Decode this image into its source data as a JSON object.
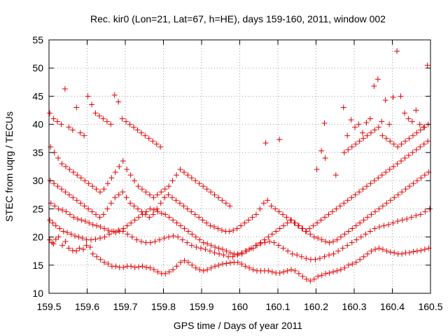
{
  "chart_data": {
    "type": "scatter",
    "title": "Rec. kir0 (Lon=21, Lat=67, h=HE), days 159-160, 2011, window 002",
    "xlabel": "GPS time / Days of year 2011",
    "ylabel": "STEC from uqrg / TECUs",
    "xlim": [
      159.5,
      160.5
    ],
    "ylim": [
      10,
      55
    ],
    "xticks": [
      159.5,
      159.6,
      159.7,
      159.8,
      159.9,
      160,
      160.1,
      160.2,
      160.3,
      160.4,
      160.5
    ],
    "xtick_labels": [
      "159.5",
      "159.6",
      "159.7",
      "159.8",
      "159.9",
      "160",
      "160.1",
      "160.2",
      "160.3",
      "160.4",
      "160.5"
    ],
    "yticks": [
      10,
      15,
      20,
      25,
      30,
      35,
      40,
      45,
      50,
      55
    ],
    "ytick_labels": [
      "10",
      "15",
      "20",
      "25",
      "30",
      "35",
      "40",
      "45",
      "50",
      "55"
    ],
    "grid": true,
    "marker": "+",
    "color": "#e00000",
    "series": [
      {
        "x": [
          159.502,
          159.508,
          159.512,
          159.518,
          159.525,
          159.535,
          159.543,
          159.552,
          159.562,
          159.572,
          159.58,
          159.59,
          159.598,
          159.608,
          159.615,
          159.625,
          159.635,
          159.645,
          159.655,
          159.665,
          159.675,
          159.685,
          159.695,
          159.705,
          159.715,
          159.725,
          159.735,
          159.745,
          159.755,
          159.765,
          159.775,
          159.785,
          159.795,
          159.805,
          159.815,
          159.825,
          159.835,
          159.845,
          159.855,
          159.865,
          159.875,
          159.885,
          159.895,
          159.905,
          159.915,
          159.925,
          159.935,
          159.945,
          159.955,
          159.965,
          159.975,
          159.985,
          159.995,
          160.005,
          160.015,
          160.025,
          160.035,
          160.045,
          160.055,
          160.065,
          160.075,
          160.085,
          160.095,
          160.105,
          160.115,
          160.125,
          160.135,
          160.145,
          160.155,
          160.165,
          160.175,
          160.185,
          160.195,
          160.205,
          160.215,
          160.225,
          160.235,
          160.245,
          160.255,
          160.265,
          160.275,
          160.285,
          160.295,
          160.305,
          160.315,
          160.325,
          160.335,
          160.345,
          160.355,
          160.365,
          160.375,
          160.385,
          160.395,
          160.405,
          160.415,
          160.425,
          160.435,
          160.445,
          160.455,
          160.465,
          160.475,
          160.485,
          160.495
        ],
        "y": [
          19.5,
          19.0,
          18.8,
          19.6,
          20.0,
          18.5,
          19.2,
          18.0,
          17.6,
          17.5,
          18.0,
          17.8,
          18.5,
          18.2,
          17.0,
          16.5,
          16.0,
          15.5,
          15.2,
          14.8,
          14.8,
          14.6,
          14.6,
          14.8,
          14.8,
          14.6,
          14.7,
          14.8,
          14.6,
          14.5,
          14.2,
          13.8,
          13.5,
          13.5,
          13.8,
          14.2,
          14.8,
          15.5,
          15.8,
          15.5,
          15.0,
          14.5,
          14.2,
          14.0,
          14.2,
          14.5,
          14.8,
          15.0,
          15.2,
          15.3,
          15.4,
          15.5,
          15.5,
          15.2,
          14.8,
          14.5,
          14.2,
          14.0,
          14.0,
          14.0,
          14.0,
          13.8,
          13.6,
          13.6,
          13.8,
          14.0,
          14.2,
          14.0,
          13.5,
          13.0,
          12.5,
          12.2,
          12.5,
          13.0,
          13.2,
          13.5,
          13.6,
          13.8,
          14.0,
          14.2,
          14.5,
          15.0,
          15.2,
          15.5,
          16.0,
          16.5,
          17.0,
          17.5,
          17.8,
          18.0,
          17.8,
          17.5,
          17.3,
          17.2,
          17.0,
          17.0,
          17.2,
          17.2,
          17.4,
          17.5,
          17.6,
          17.8,
          18.0
        ]
      },
      {
        "x": [
          159.502,
          159.51,
          159.518,
          159.528,
          159.538,
          159.548,
          159.558,
          159.568,
          159.578,
          159.588,
          159.598,
          159.61,
          159.622,
          159.634,
          159.646,
          159.658,
          159.67,
          159.682,
          159.694,
          159.706,
          159.718,
          159.73,
          159.742,
          159.754,
          159.766,
          159.778,
          159.79,
          159.802,
          159.814,
          159.826,
          159.838,
          159.85,
          159.862,
          159.874,
          159.886,
          159.898,
          159.91,
          159.922,
          159.934,
          159.946,
          159.958,
          159.97,
          159.982,
          159.994,
          160.006,
          160.018,
          160.03,
          160.042,
          160.054,
          160.066,
          160.078,
          160.09,
          160.102,
          160.114,
          160.126,
          160.138,
          160.15,
          160.162,
          160.174,
          160.186,
          160.198,
          160.21,
          160.222,
          160.234,
          160.246,
          160.258,
          160.27,
          160.282,
          160.294,
          160.306,
          160.318,
          160.33,
          160.342,
          160.354,
          160.366,
          160.378,
          160.39,
          160.402,
          160.414,
          160.426,
          160.438,
          160.45,
          160.462,
          160.474,
          160.486,
          160.498
        ],
        "y": [
          23.0,
          22.5,
          22.0,
          21.5,
          21.0,
          20.8,
          20.5,
          20.2,
          20.0,
          19.8,
          19.5,
          19.5,
          19.6,
          19.8,
          20.0,
          20.5,
          21.0,
          21.2,
          21.0,
          20.5,
          20.0,
          19.5,
          19.2,
          19.0,
          19.0,
          19.2,
          19.5,
          19.8,
          20.0,
          20.2,
          20.0,
          19.5,
          19.0,
          18.5,
          18.2,
          18.0,
          17.8,
          17.5,
          17.2,
          17.0,
          16.8,
          16.5,
          16.5,
          16.8,
          17.0,
          17.5,
          18.0,
          18.5,
          18.8,
          19.0,
          19.2,
          19.0,
          18.5,
          18.0,
          17.5,
          17.0,
          16.8,
          16.5,
          16.2,
          16.0,
          16.0,
          16.2,
          16.5,
          16.8,
          17.0,
          17.5,
          18.0,
          18.5,
          19.0,
          19.5,
          20.0,
          20.5,
          21.0,
          21.5,
          21.8,
          22.0,
          22.2,
          22.5,
          22.8,
          23.0,
          23.2,
          23.5,
          23.8,
          24.0,
          24.5,
          25.0
        ]
      },
      {
        "x": [
          159.505,
          159.515,
          159.525,
          159.535,
          159.545,
          159.555,
          159.565,
          159.575,
          159.585,
          159.595,
          159.605,
          159.615,
          159.625,
          159.635,
          159.645,
          159.655,
          159.665,
          159.675,
          159.685,
          159.695,
          159.705,
          159.715,
          159.725,
          159.735,
          159.745,
          159.755,
          159.765,
          159.775,
          159.785,
          159.795,
          159.805,
          159.815,
          159.825,
          159.835,
          159.845,
          159.855,
          159.865,
          159.875,
          159.885,
          159.895,
          159.905,
          159.915,
          159.925,
          159.935,
          159.945,
          159.955,
          159.965,
          159.975,
          159.985,
          159.995,
          160.005,
          160.015,
          160.025,
          160.035,
          160.045,
          160.055,
          160.065,
          160.075,
          160.085,
          160.095,
          160.105,
          160.115,
          160.125,
          160.135,
          160.145,
          160.155,
          160.165,
          160.175,
          160.185,
          160.195,
          160.205,
          160.215,
          160.225,
          160.235,
          160.245,
          160.255,
          160.265,
          160.275,
          160.285,
          160.295,
          160.305,
          160.315,
          160.325,
          160.335,
          160.345,
          160.355,
          160.365,
          160.375,
          160.385,
          160.395,
          160.405,
          160.415,
          160.425,
          160.435,
          160.445,
          160.455,
          160.465,
          160.475,
          160.485,
          160.495
        ],
        "y": [
          26.0,
          25.5,
          25.0,
          24.8,
          24.5,
          24.0,
          23.5,
          23.2,
          23.0,
          22.8,
          22.5,
          22.2,
          22.0,
          21.8,
          21.5,
          21.2,
          21.0,
          20.8,
          21.0,
          21.5,
          22.0,
          22.5,
          23.0,
          23.5,
          24.0,
          24.5,
          25.0,
          24.8,
          24.5,
          24.2,
          24.0,
          23.5,
          23.0,
          22.5,
          22.0,
          21.5,
          21.0,
          20.5,
          20.0,
          19.5,
          19.0,
          18.8,
          18.5,
          18.2,
          18.0,
          17.8,
          17.5,
          17.2,
          17.0,
          17.0,
          17.2,
          17.5,
          17.8,
          18.0,
          18.5,
          19.0,
          19.5,
          20.0,
          20.5,
          21.0,
          21.5,
          22.0,
          22.5,
          23.0,
          22.5,
          22.0,
          21.5,
          21.0,
          20.5,
          20.0,
          19.8,
          19.5,
          19.2,
          19.0,
          19.2,
          19.5,
          20.0,
          20.5,
          21.0,
          21.5,
          22.0,
          22.5,
          23.0,
          23.5,
          24.0,
          24.5,
          25.0,
          25.5,
          26.0,
          26.5,
          27.0,
          27.5,
          28.0,
          28.5,
          29.0,
          29.5,
          30.0,
          30.5,
          31.0,
          31.5
        ]
      },
      {
        "x": [
          159.503,
          159.513,
          159.523,
          159.533,
          159.543,
          159.553,
          159.563,
          159.573,
          159.583,
          159.593,
          159.603,
          159.613,
          159.623,
          159.633,
          159.643,
          159.653,
          159.663,
          159.673,
          159.683,
          159.693,
          159.703,
          159.713,
          159.723,
          159.733,
          159.743,
          159.753,
          159.763,
          159.773,
          159.783,
          159.793,
          159.803,
          159.813,
          159.823,
          159.833,
          159.843,
          159.853,
          159.863,
          159.873,
          159.883,
          159.893,
          159.903,
          159.913,
          159.923,
          159.933,
          159.943,
          159.953,
          159.963,
          159.973,
          159.983,
          159.993,
          160.003,
          160.013,
          160.023,
          160.033,
          160.043,
          160.053,
          160.063,
          160.073,
          160.083,
          160.093,
          160.103,
          160.113,
          160.123,
          160.133,
          160.143,
          160.153,
          160.163,
          160.173,
          160.183,
          160.193,
          160.203,
          160.213,
          160.223,
          160.233,
          160.243,
          160.253,
          160.263,
          160.273,
          160.283,
          160.293,
          160.303,
          160.313,
          160.323,
          160.333,
          160.343,
          160.353,
          160.363,
          160.373,
          160.383,
          160.393,
          160.403,
          160.413,
          160.423,
          160.433,
          160.443,
          160.453,
          160.463,
          160.473,
          160.483,
          160.493
        ],
        "y": [
          30.0,
          29.5,
          29.0,
          28.5,
          28.0,
          27.5,
          27.0,
          26.5,
          26.0,
          25.5,
          25.0,
          24.5,
          24.0,
          23.5,
          24.0,
          25.0,
          26.0,
          27.0,
          27.5,
          28.0,
          27.0,
          26.0,
          25.5,
          25.0,
          24.5,
          24.0,
          23.5,
          24.0,
          25.0,
          26.0,
          27.0,
          27.5,
          27.0,
          26.5,
          26.0,
          25.5,
          25.0,
          24.5,
          24.0,
          23.5,
          23.0,
          22.5,
          22.0,
          21.8,
          21.5,
          21.2,
          21.0,
          21.0,
          21.2,
          21.5,
          22.0,
          22.5,
          23.0,
          23.5,
          24.0,
          25.0,
          26.0,
          26.5,
          25.5,
          25.0,
          24.5,
          24.0,
          23.5,
          23.0,
          22.5,
          22.0,
          21.5,
          21.0,
          21.5,
          22.0,
          22.5,
          23.0,
          23.5,
          24.0,
          24.5,
          25.0,
          25.5,
          26.0,
          26.5,
          27.0,
          27.5,
          28.0,
          28.5,
          29.0,
          29.5,
          30.0,
          30.5,
          31.0,
          31.5,
          32.0,
          32.5,
          33.0,
          33.5,
          34.0,
          34.5,
          35.0,
          35.5,
          36.0,
          36.5,
          37.0
        ]
      },
      {
        "x": [
          159.504,
          159.514,
          159.524,
          159.534,
          159.544,
          159.554,
          159.564,
          159.574,
          159.584,
          159.594,
          159.604,
          159.614,
          159.624,
          159.634,
          159.644,
          159.654,
          159.664,
          159.674,
          159.684,
          159.694,
          159.704,
          159.714,
          159.724,
          159.734,
          159.744,
          159.754,
          159.764,
          159.774,
          159.784,
          159.794,
          159.804,
          159.814,
          159.824,
          159.834,
          159.844,
          159.854,
          159.864,
          159.874,
          159.884,
          159.894,
          159.904,
          159.914,
          159.924,
          159.934,
          159.944,
          159.954,
          159.964,
          159.974,
          160.068,
          160.104,
          160.214,
          160.224,
          160.274,
          160.284,
          160.294,
          160.304,
          160.314,
          160.324,
          160.334,
          160.344,
          160.354,
          160.364,
          160.374,
          160.384,
          160.394,
          160.404,
          160.414,
          160.424,
          160.434,
          160.444,
          160.454,
          160.464,
          160.474,
          160.484,
          160.494
        ],
        "y": [
          36.0,
          35.0,
          34.0,
          33.0,
          32.5,
          32.0,
          31.5,
          31.0,
          30.5,
          30.0,
          29.5,
          29.0,
          28.5,
          28.0,
          28.5,
          29.5,
          30.5,
          31.5,
          32.5,
          33.5,
          32.0,
          31.0,
          30.0,
          29.0,
          28.5,
          28.0,
          27.5,
          27.0,
          27.5,
          28.0,
          28.5,
          29.0,
          30.0,
          31.0,
          32.0,
          31.5,
          31.0,
          30.5,
          30.0,
          29.5,
          29.0,
          28.5,
          28.0,
          27.5,
          27.0,
          26.5,
          26.0,
          25.5,
          36.7,
          37.3,
          35.3,
          34.0,
          35.0,
          35.5,
          36.0,
          36.5,
          37.0,
          37.5,
          38.0,
          38.5,
          39.0,
          39.5,
          38.0,
          37.5,
          37.0,
          36.5,
          36.0,
          36.5,
          37.0,
          37.5,
          38.0,
          38.5,
          39.0,
          39.5,
          40.0
        ]
      },
      {
        "x": [
          159.502,
          159.512,
          159.522,
          159.532,
          159.542,
          159.552,
          159.562,
          159.572,
          159.582,
          159.592,
          159.602,
          159.612,
          159.622,
          159.632,
          159.642,
          159.652,
          159.662,
          159.672,
          159.682,
          159.692,
          159.702,
          159.712,
          159.722,
          159.732,
          159.742,
          159.752,
          159.762,
          159.772,
          159.782,
          159.792,
          160.202,
          160.222,
          160.252,
          160.272,
          160.282,
          160.292,
          160.302,
          160.312,
          160.322,
          160.332,
          160.342,
          160.352,
          160.362,
          160.372,
          160.382,
          160.392,
          160.402,
          160.412,
          160.422,
          160.432,
          160.442,
          160.452,
          160.462,
          160.472,
          160.482,
          160.492
        ],
        "y": [
          42.0,
          41.0,
          40.5,
          40.0,
          46.3,
          39.5,
          39.0,
          43.0,
          38.5,
          38.0,
          45.0,
          43.5,
          42.0,
          41.5,
          41.0,
          40.5,
          40.0,
          45.2,
          44.0,
          41.0,
          40.5,
          40.0,
          39.5,
          39.0,
          38.5,
          38.0,
          37.5,
          37.0,
          36.5,
          36.0,
          32.0,
          40.2,
          31.0,
          43.0,
          38.0,
          40.8,
          39.5,
          40.0,
          38.5,
          40.3,
          41.0,
          46.8,
          48.0,
          40.5,
          44.3,
          40.0,
          44.8,
          53.0,
          45.0,
          42.0,
          41.0,
          40.5,
          42.5,
          40.0,
          39.5,
          50.5
        ]
      }
    ]
  }
}
